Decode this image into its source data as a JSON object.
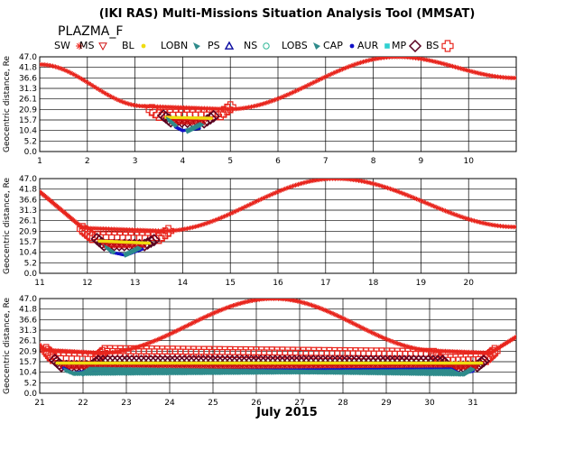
{
  "title": "(IKI RAS) Multi-Missions Situation Analysis Tool (MMSAT)",
  "subtitle": "PLAZMA_F",
  "x_title": "July 2015",
  "ylabel": "Geocentric distance, Re",
  "legend": [
    {
      "label": "SW",
      "marker": "star",
      "color": "#e8251d"
    },
    {
      "label": "MS",
      "marker": "triangle-down",
      "color": "#d01010"
    },
    {
      "label": "BL",
      "marker": "dot",
      "color": "#f0dc10"
    },
    {
      "label": "LOBN",
      "marker": "triangle-fill",
      "color": "#2e8b8b"
    },
    {
      "label": "PS",
      "marker": "triangle-up",
      "color": "#0a0aa0"
    },
    {
      "label": "NS",
      "marker": "circle",
      "color": "#30b898"
    },
    {
      "label": "LOBS",
      "marker": "triangle-fill",
      "color": "#2e8b8b"
    },
    {
      "label": "CAP",
      "marker": "dot",
      "color": "#1010c8"
    },
    {
      "label": "AUR",
      "marker": "square",
      "color": "#30d0d0"
    },
    {
      "label": "MP",
      "marker": "diamond",
      "color": "#5a0020"
    },
    {
      "label": "BS",
      "marker": "cross",
      "color": "#e8251d"
    }
  ],
  "chart_data": [
    {
      "type": "scatter",
      "xlim": [
        1,
        11
      ],
      "ylim": [
        0,
        47
      ],
      "xticks": [
        "1",
        "2",
        "3",
        "4",
        "5",
        "6",
        "7",
        "8",
        "9",
        "10"
      ],
      "yticks": [
        "0.0",
        "5.2",
        "10.4",
        "15.7",
        "20.9",
        "26.1",
        "31.3",
        "36.6",
        "41.8",
        "47.0"
      ],
      "grid": true,
      "apogee": [
        8.5,
        47.0
      ],
      "perigees": [
        4.1
      ],
      "segments": {
        "SW": [
          [
            1.0,
            43.2
          ],
          [
            3.2,
            22.5
          ],
          [
            4.95,
            21.0
          ],
          [
            8.5,
            47.0
          ],
          [
            11.0,
            36.5
          ]
        ],
        "BS": [
          [
            3.35,
            20.6
          ],
          [
            3.5,
            18.2
          ],
          [
            4.8,
            18.5
          ],
          [
            5.0,
            22.0
          ]
        ],
        "MP": [
          [
            3.6,
            17.8
          ],
          [
            3.75,
            15.0
          ],
          [
            4.45,
            14.5
          ],
          [
            4.65,
            17.5
          ]
        ],
        "MS": [
          [
            3.75,
            15.0
          ],
          [
            4.45,
            14.5
          ]
        ],
        "BL": [
          [
            3.65,
            17.0
          ],
          [
            4.6,
            16.5
          ]
        ],
        "CAP": [
          [
            3.85,
            12.2
          ],
          [
            4.0,
            10.4
          ],
          [
            4.35,
            11.5
          ]
        ],
        "LOBN": [
          [
            3.7,
            16.0
          ],
          [
            3.85,
            13.0
          ]
        ],
        "LOBS": [
          [
            4.1,
            10.0
          ],
          [
            4.4,
            13.5
          ]
        ]
      }
    },
    {
      "type": "scatter",
      "xlim": [
        11,
        21
      ],
      "ylim": [
        0,
        47
      ],
      "xticks": [
        "11",
        "12",
        "13",
        "14",
        "15",
        "16",
        "17",
        "18",
        "19",
        "20"
      ],
      "yticks": [
        "0.0",
        "5.2",
        "10.4",
        "15.7",
        "20.9",
        "26.1",
        "31.3",
        "36.6",
        "41.8",
        "47.0"
      ],
      "grid": true,
      "apogee": [
        17.2,
        47.0
      ],
      "perigees": [
        12.8
      ],
      "segments": {
        "SW": [
          [
            11.0,
            40.5
          ],
          [
            11.9,
            22.5
          ],
          [
            13.6,
            21.0
          ],
          [
            17.2,
            47.0
          ],
          [
            21.0,
            23.0
          ]
        ],
        "BS": [
          [
            11.9,
            22.0
          ],
          [
            12.1,
            18.0
          ],
          [
            13.5,
            17.5
          ],
          [
            13.7,
            21.0
          ]
        ],
        "MP": [
          [
            12.2,
            17.0
          ],
          [
            12.35,
            14.0
          ],
          [
            13.2,
            14.0
          ],
          [
            13.4,
            16.5
          ]
        ],
        "MS": [
          [
            12.35,
            14.0
          ],
          [
            13.2,
            14.0
          ]
        ],
        "BL": [
          [
            12.25,
            16.0
          ],
          [
            13.3,
            15.0
          ]
        ],
        "CAP": [
          [
            12.5,
            10.5
          ],
          [
            12.8,
            9.0
          ],
          [
            13.15,
            12.0
          ]
        ],
        "LOBN": [
          [
            12.4,
            13.0
          ],
          [
            12.55,
            10.5
          ]
        ],
        "LOBS": [
          [
            12.8,
            9.0
          ],
          [
            13.1,
            12.5
          ]
        ]
      }
    },
    {
      "type": "scatter",
      "xlim": [
        21,
        32
      ],
      "ylim": [
        0,
        47
      ],
      "xticks": [
        "21",
        "22",
        "23",
        "24",
        "25",
        "26",
        "27",
        "28",
        "29",
        "30",
        "31"
      ],
      "yticks": [
        "0.0",
        "5.2",
        "10.4",
        "15.7",
        "20.9",
        "26.1",
        "31.3",
        "36.6",
        "41.8",
        "47.0"
      ],
      "grid": true,
      "apogee": [
        26.4,
        47.0
      ],
      "perigees": [
        22.0,
        30.7
      ],
      "segments": {
        "SW": [
          [
            21.0,
            24.0
          ],
          [
            21.1,
            21.5
          ],
          [
            22.4,
            20.0
          ],
          [
            26.4,
            47.0
          ],
          [
            30.2,
            21.0
          ],
          [
            31.4,
            20.0
          ],
          [
            32.0,
            28.0
          ]
        ],
        "BS": [
          [
            21.15,
            21.5
          ],
          [
            21.3,
            17.5
          ],
          [
            22.3,
            17.0
          ],
          [
            22.5,
            21.0
          ],
          [
            30.1,
            19.5
          ],
          [
            30.25,
            16.5
          ],
          [
            31.3,
            17.0
          ],
          [
            31.5,
            21.0
          ]
        ],
        "MP": [
          [
            21.35,
            16.5
          ],
          [
            21.5,
            13.5
          ],
          [
            22.2,
            13.5
          ],
          [
            22.35,
            16.0
          ],
          [
            30.3,
            16.0
          ],
          [
            30.45,
            13.0
          ],
          [
            31.1,
            13.5
          ],
          [
            31.25,
            16.0
          ]
        ],
        "MS": [
          [
            21.5,
            13.5
          ],
          [
            22.2,
            13.5
          ],
          [
            30.45,
            13.0
          ],
          [
            31.1,
            13.5
          ]
        ],
        "BL": [
          [
            21.4,
            15.0
          ],
          [
            22.3,
            15.0
          ],
          [
            30.35,
            15.0
          ],
          [
            31.2,
            15.0
          ]
        ],
        "CAP": [
          [
            21.55,
            12.5
          ],
          [
            21.75,
            10.0
          ],
          [
            22.1,
            11.0
          ],
          [
            30.5,
            12.0
          ],
          [
            30.7,
            9.5
          ],
          [
            31.0,
            11.0
          ]
        ],
        "LOBN": [
          [
            21.6,
            11.5
          ],
          [
            21.8,
            9.8
          ],
          [
            30.55,
            11.0
          ],
          [
            30.7,
            9.5
          ]
        ],
        "LOBS": [
          [
            22.0,
            9.5
          ],
          [
            22.2,
            12.0
          ],
          [
            30.8,
            9.5
          ],
          [
            31.0,
            12.0
          ]
        ]
      }
    }
  ]
}
